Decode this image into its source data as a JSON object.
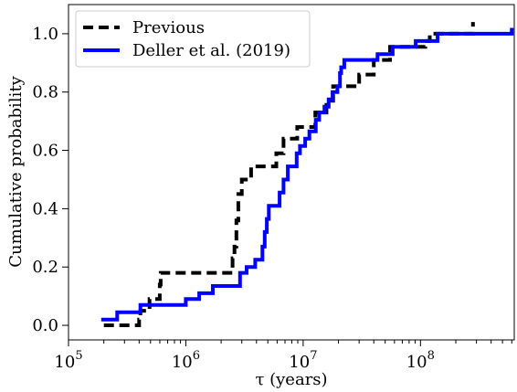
{
  "chart_data": {
    "type": "line",
    "xscale": "log",
    "xlim": [
      100000.0,
      630000000.0
    ],
    "ylim": [
      -0.05,
      1.1
    ],
    "xlabel": "τ (years)",
    "ylabel": "Cumulative probability",
    "x_ticks": [
      {
        "value": 100000,
        "base": "10",
        "exp": "5"
      },
      {
        "value": 1000000,
        "base": "10",
        "exp": "6"
      },
      {
        "value": 10000000,
        "base": "10",
        "exp": "7"
      },
      {
        "value": 100000000,
        "base": "10",
        "exp": "8"
      }
    ],
    "y_ticks": [
      {
        "value": 0.0,
        "label": "0.0"
      },
      {
        "value": 0.2,
        "label": "0.2"
      },
      {
        "value": 0.4,
        "label": "0.4"
      },
      {
        "value": 0.6,
        "label": "0.6"
      },
      {
        "value": 0.8,
        "label": "0.8"
      },
      {
        "value": 1.0,
        "label": "1.0"
      }
    ],
    "legend_position": "top-left",
    "grid": false,
    "series": [
      {
        "name": "Previous",
        "color": "#000000",
        "style": "dashed",
        "x": [
          200000,
          400000,
          410000,
          490000,
          600000,
          610000,
          2500000,
          2600000,
          2700000,
          2800000,
          3000000,
          3600000,
          5900000,
          6800000,
          8900000,
          9500000,
          12700000,
          15800000,
          18000000,
          20000000,
          22000000,
          23000000,
          30000000,
          32000000,
          40000000,
          45000000,
          55000000,
          60000000,
          65000000,
          110000000,
          120000000,
          280000000
        ],
        "y": [
          0.0,
          0.02,
          0.05,
          0.09,
          0.14,
          0.18,
          0.23,
          0.27,
          0.36,
          0.45,
          0.5,
          0.545,
          0.59,
          0.64,
          0.68,
          0.68,
          0.73,
          0.77,
          0.82,
          0.82,
          0.82,
          0.82,
          0.86,
          0.86,
          0.91,
          0.91,
          0.955,
          0.955,
          0.955,
          0.975,
          1.0,
          1.04
        ]
      },
      {
        "name": "Deller et al. (2019)",
        "color": "#0000ff",
        "style": "solid",
        "x": [
          190000,
          260000,
          410000,
          1000000,
          1300000,
          1700000,
          2900000,
          3300000,
          3900000,
          4500000,
          4700000,
          4900000,
          5100000,
          6300000,
          6800000,
          7400000,
          8800000,
          9400000,
          10400000,
          11300000,
          12800000,
          13700000,
          15200000,
          16500000,
          17800000,
          19600000,
          20600000,
          21100000,
          22400000,
          43000000,
          58000000,
          69000000,
          91000000,
          135000000,
          140000000,
          600000000
        ],
        "y": [
          0.02,
          0.045,
          0.07,
          0.09,
          0.11,
          0.135,
          0.18,
          0.2,
          0.225,
          0.27,
          0.32,
          0.365,
          0.41,
          0.455,
          0.5,
          0.545,
          0.59,
          0.615,
          0.64,
          0.665,
          0.705,
          0.73,
          0.75,
          0.775,
          0.8,
          0.82,
          0.865,
          0.885,
          0.91,
          0.93,
          0.955,
          0.955,
          0.975,
          0.975,
          1.0,
          1.02
        ]
      }
    ]
  }
}
